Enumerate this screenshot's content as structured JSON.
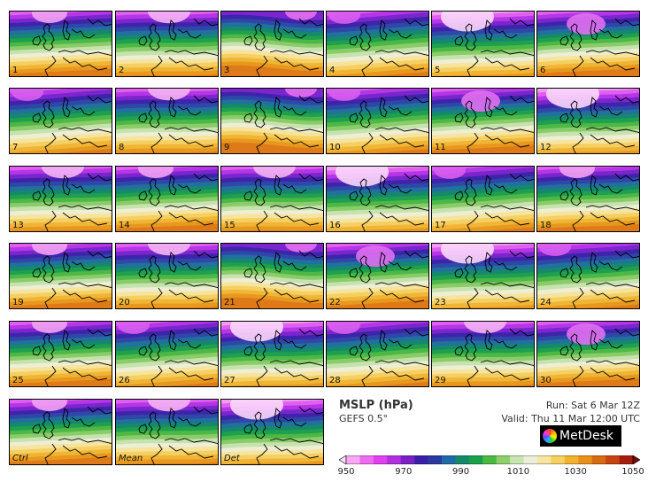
{
  "title": "MSLP (hPa)",
  "model": "GEFS 0.5°",
  "run": "Run: Sat 6 Mar 12Z",
  "valid": "Valid: Thu 11 Mar 12:00 UTC",
  "brand": "MetDesk",
  "colorbar": {
    "ticks": [
      "950",
      "970",
      "990",
      "1010",
      "1030",
      "1050"
    ],
    "min": 950,
    "max": 1050,
    "colors": [
      "#fde0fb",
      "#f7a8f5",
      "#ef6cf0",
      "#e040f0",
      "#b030e0",
      "#7a20c8",
      "#3a20a8",
      "#2a3aa0",
      "#1f6aa8",
      "#158a6a",
      "#1aa04a",
      "#4cba3e",
      "#8fcf6a",
      "#c8e4b0",
      "#ecefd8",
      "#f7e6a0",
      "#f6d060",
      "#f1b22e",
      "#e8901a",
      "#d86a12",
      "#c8430e",
      "#a81c0e",
      "#780808"
    ]
  },
  "panels": [
    {
      "label": "1",
      "italic": false,
      "style": 0
    },
    {
      "label": "2",
      "italic": false,
      "style": 1
    },
    {
      "label": "3",
      "italic": false,
      "style": 2
    },
    {
      "label": "4",
      "italic": false,
      "style": 3
    },
    {
      "label": "5",
      "italic": false,
      "style": 4
    },
    {
      "label": "6",
      "italic": false,
      "style": 5
    },
    {
      "label": "7",
      "italic": false,
      "style": 3
    },
    {
      "label": "8",
      "italic": false,
      "style": 1
    },
    {
      "label": "9",
      "italic": false,
      "style": 2
    },
    {
      "label": "10",
      "italic": false,
      "style": 3
    },
    {
      "label": "11",
      "italic": false,
      "style": 5
    },
    {
      "label": "12",
      "italic": false,
      "style": 4
    },
    {
      "label": "13",
      "italic": false,
      "style": 1
    },
    {
      "label": "14",
      "italic": false,
      "style": 0
    },
    {
      "label": "15",
      "italic": false,
      "style": 1
    },
    {
      "label": "16",
      "italic": false,
      "style": 4
    },
    {
      "label": "17",
      "italic": false,
      "style": 3
    },
    {
      "label": "18",
      "italic": false,
      "style": 0
    },
    {
      "label": "19",
      "italic": false,
      "style": 0
    },
    {
      "label": "20",
      "italic": false,
      "style": 1
    },
    {
      "label": "21",
      "italic": false,
      "style": 2
    },
    {
      "label": "22",
      "italic": false,
      "style": 5
    },
    {
      "label": "23",
      "italic": false,
      "style": 4
    },
    {
      "label": "24",
      "italic": false,
      "style": 3
    },
    {
      "label": "25",
      "italic": false,
      "style": 0
    },
    {
      "label": "26",
      "italic": false,
      "style": 3
    },
    {
      "label": "27",
      "italic": false,
      "style": 4
    },
    {
      "label": "28",
      "italic": false,
      "style": 3
    },
    {
      "label": "29",
      "italic": false,
      "style": 1
    },
    {
      "label": "30",
      "italic": false,
      "style": 5
    },
    {
      "label": "Ctrl",
      "italic": true,
      "style": 0
    },
    {
      "label": "Mean",
      "italic": true,
      "style": 1
    },
    {
      "label": "Det",
      "italic": true,
      "style": 4
    }
  ]
}
